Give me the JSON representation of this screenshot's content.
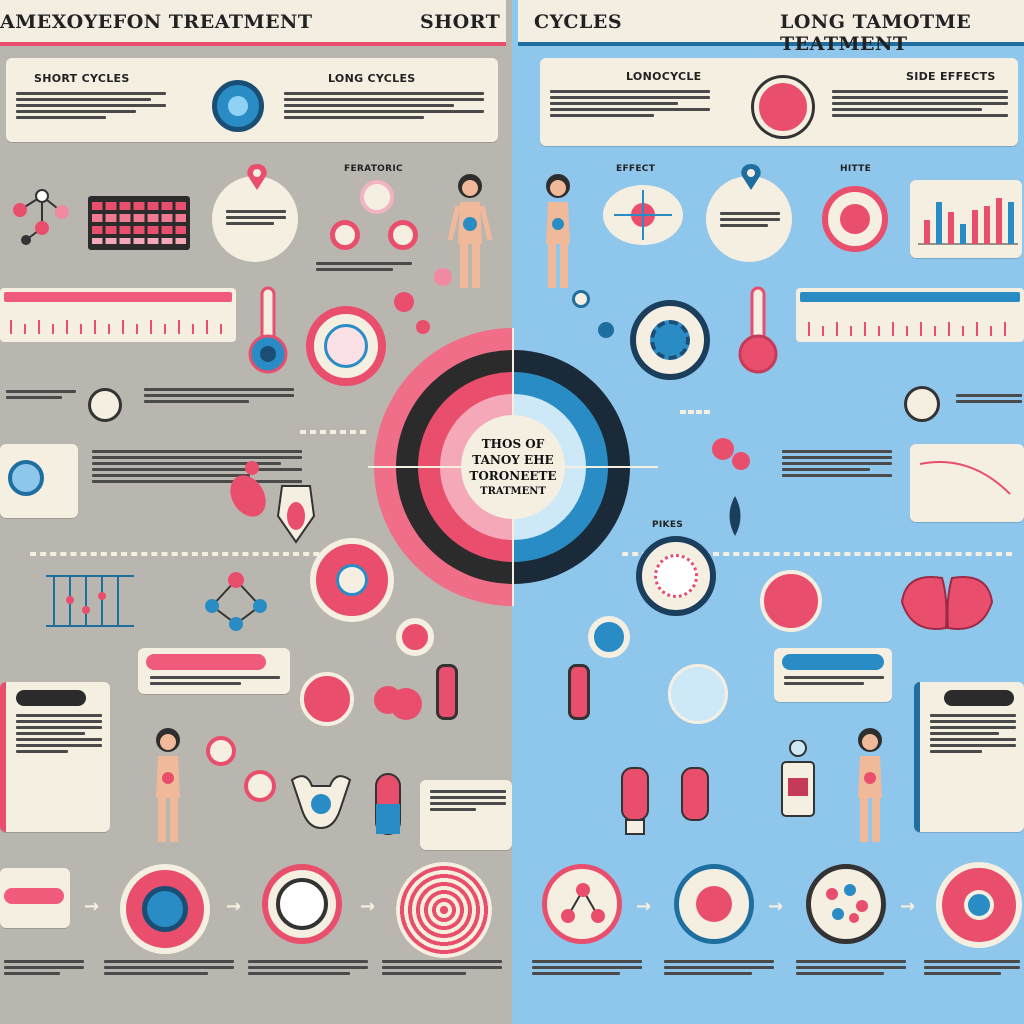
{
  "header": {
    "left_title": "AMEXOYEFON TREATMENT",
    "left_tag": "SHORT",
    "right_tag": "CYCLES",
    "right_title": "LONG TAMOTME TEATMENT"
  },
  "left_panel": {
    "card_a_heading": "SHORT CYCLES",
    "card_b_heading": "LONG CYCLES",
    "label_middle": "FERATORIC"
  },
  "right_panel": {
    "card_a_heading": "LONOCYCLE",
    "card_b_heading": "SIDE EFFECTS",
    "label_effect": "EFFECT",
    "label_hitte": "HITTE",
    "label_pikes": "PIKES",
    "label_side": "SIDE EFFECTS"
  },
  "center": {
    "line1": "THOS OF",
    "line2": "TANOY EHE",
    "line3": "TORONEETE",
    "line4": "TRATMENT"
  },
  "colors": {
    "pink": "#e94f6d",
    "blue": "#1e6f9f",
    "light_blue": "#8fc6ec",
    "cream": "#f5efe1",
    "grey": "#b9b6b0"
  }
}
